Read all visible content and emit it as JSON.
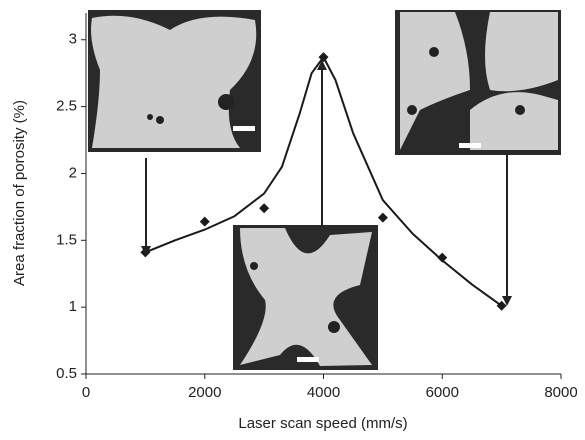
{
  "chart_data": {
    "type": "scatter",
    "x_label": "Laser scan speed  (mm/s)",
    "y_label": "Area fraction of porosity (%)",
    "xlim": [
      0,
      8000
    ],
    "xticks": [
      0,
      2000,
      4000,
      6000,
      8000
    ],
    "ylim": [
      0.5,
      3.2
    ],
    "yticks": [
      0.5,
      1,
      1.5,
      2,
      2.5,
      3
    ],
    "grid": false,
    "series": [
      {
        "type": "scatter",
        "color": "#1a1a1a",
        "x": [
          1000,
          2000,
          3000,
          4000,
          5000,
          6000,
          7000
        ],
        "values": [
          1.41,
          1.64,
          1.74,
          2.87,
          1.67,
          1.37,
          1.01
        ]
      },
      {
        "type": "line",
        "color": "#1a1a1a",
        "x": [
          1000,
          1500,
          2000,
          2500,
          3000,
          3300,
          3600,
          3800,
          4000,
          4200,
          4500,
          5000,
          5500,
          6000,
          6500,
          7000
        ],
        "values": [
          1.41,
          1.5,
          1.58,
          1.68,
          1.85,
          2.05,
          2.45,
          2.75,
          2.87,
          2.7,
          2.3,
          1.8,
          1.55,
          1.35,
          1.17,
          1.01
        ]
      }
    ]
  }
}
